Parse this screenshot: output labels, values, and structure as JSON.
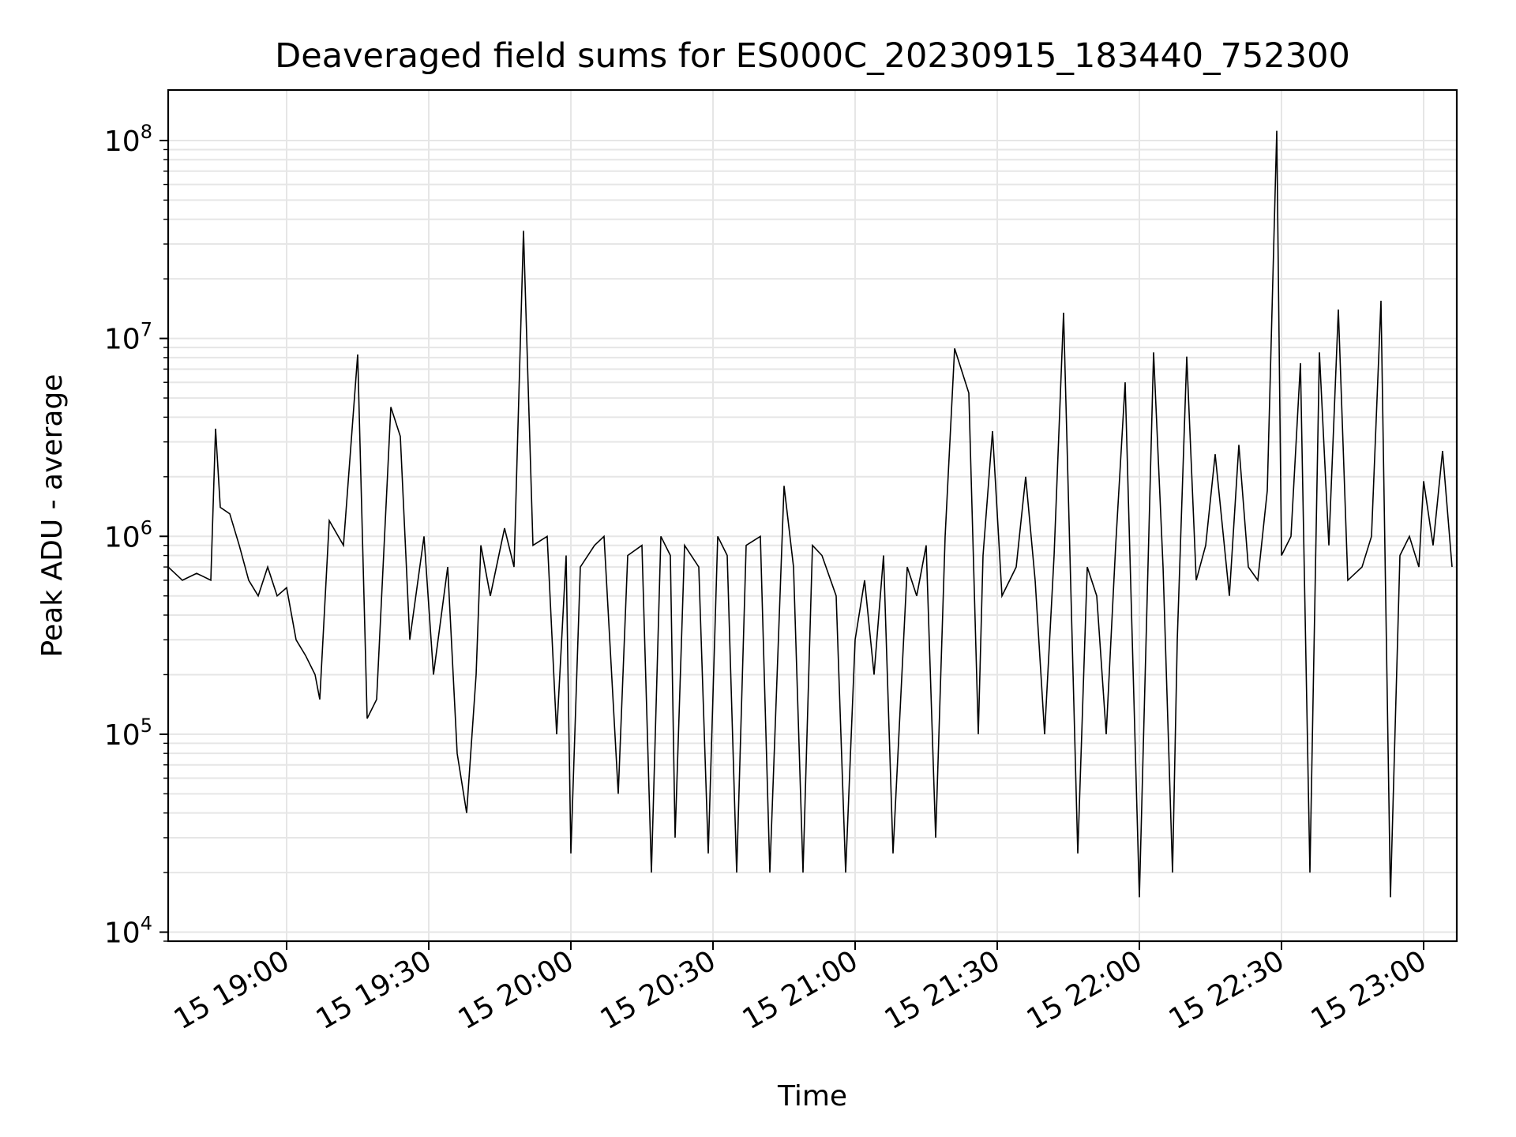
{
  "chart_data": {
    "type": "line",
    "title": "Deaveraged field sums for ES000C_20230915_183440_752300",
    "xlabel": "Time",
    "ylabel": "Peak ADU - average",
    "yscale": "log",
    "ylim": [
      9000,
      180000000
    ],
    "xlim": [
      "2023-09-15 18:35",
      "2023-09-15 23:07"
    ],
    "grid": true,
    "x_ticks": [
      "15 19:00",
      "15 19:30",
      "15 20:00",
      "15 20:30",
      "15 21:00",
      "15 21:30",
      "15 22:00",
      "15 22:30",
      "15 23:00"
    ],
    "y_ticks": [
      {
        "value": 10000,
        "base": "10",
        "exp": "4"
      },
      {
        "value": 100000,
        "base": "10",
        "exp": "5"
      },
      {
        "value": 1000000,
        "base": "10",
        "exp": "6"
      },
      {
        "value": 10000000,
        "base": "10",
        "exp": "7"
      },
      {
        "value": 100000000,
        "base": "10",
        "exp": "8"
      }
    ],
    "line_color": "#000000",
    "grid_color": "#e6e6e6",
    "series": [
      {
        "x": [
          "18:35",
          "18:38",
          "18:41",
          "18:44",
          "18:45",
          "18:46",
          "18:48",
          "18:50",
          "18:52",
          "18:54",
          "18:56",
          "18:58",
          "19:00",
          "19:02",
          "19:04",
          "19:06",
          "19:07",
          "19:09",
          "19:12",
          "19:15",
          "19:17",
          "19:19",
          "19:22",
          "19:24",
          "19:26",
          "19:29",
          "19:31",
          "19:34",
          "19:36",
          "19:38",
          "19:40",
          "19:41",
          "19:43",
          "19:46",
          "19:48",
          "19:50",
          "19:52",
          "19:55",
          "19:57",
          "19:59",
          "20:00",
          "20:02",
          "20:05",
          "20:07",
          "20:10",
          "20:12",
          "20:15",
          "20:17",
          "20:19",
          "20:21",
          "20:22",
          "20:24",
          "20:27",
          "20:29",
          "20:31",
          "20:33",
          "20:35",
          "20:37",
          "20:40",
          "20:42",
          "20:45",
          "20:47",
          "20:49",
          "20:51",
          "20:53",
          "20:56",
          "20:58",
          "21:00",
          "21:02",
          "21:04",
          "21:06",
          "21:08",
          "21:11",
          "21:13",
          "21:15",
          "21:17",
          "21:19",
          "21:21",
          "21:24",
          "21:26",
          "21:27",
          "21:29",
          "21:31",
          "21:34",
          "21:36",
          "21:38",
          "21:40",
          "21:42",
          "21:44",
          "21:47",
          "21:49",
          "21:51",
          "21:53",
          "21:55",
          "21:57",
          "22:00",
          "22:03",
          "22:05",
          "22:07",
          "22:08",
          "22:10",
          "22:12",
          "22:14",
          "22:16",
          "22:19",
          "22:21",
          "22:23",
          "22:25",
          "22:27",
          "22:29",
          "22:30",
          "22:32",
          "22:34",
          "22:36",
          "22:38",
          "22:40",
          "22:42",
          "22:44",
          "22:47",
          "22:49",
          "22:51",
          "22:53",
          "22:55",
          "22:57",
          "22:59",
          "23:00",
          "23:02",
          "23:04",
          "23:06"
        ],
        "y": [
          700000,
          600000,
          650000,
          600000,
          3500000,
          1400000,
          1300000,
          900000,
          600000,
          500000,
          700000,
          500000,
          550000,
          300000,
          250000,
          200000,
          150000,
          1200000,
          900000,
          8300000,
          120000,
          150000,
          4500000,
          3200000,
          300000,
          1000000,
          200000,
          700000,
          80000,
          40000,
          200000,
          900000,
          500000,
          1100000,
          700000,
          35000000,
          900000,
          1000000,
          100000,
          800000,
          25000,
          700000,
          900000,
          1000000,
          50000,
          800000,
          900000,
          20000,
          1000000,
          800000,
          30000,
          900000,
          700000,
          25000,
          1000000,
          800000,
          20000,
          900000,
          1000000,
          20000,
          1800000,
          700000,
          20000,
          900000,
          800000,
          500000,
          20000,
          300000,
          600000,
          200000,
          800000,
          25000,
          700000,
          500000,
          900000,
          30000,
          1000000,
          8900000,
          5300000,
          100000,
          800000,
          3400000,
          500000,
          700000,
          2000000,
          600000,
          100000,
          800000,
          13500000,
          25000,
          700000,
          500000,
          100000,
          900000,
          6000000,
          15000,
          8500000,
          700000,
          20000,
          300000,
          8100000,
          600000,
          900000,
          2600000,
          500000,
          2900000,
          700000,
          600000,
          1700000,
          112000000,
          800000,
          1000000,
          7500000,
          20000,
          8500000,
          900000,
          14000000,
          600000,
          700000,
          1000000,
          15500000,
          15000,
          800000,
          1000000,
          700000,
          1900000,
          900000,
          2700000,
          700000
        ]
      }
    ]
  }
}
